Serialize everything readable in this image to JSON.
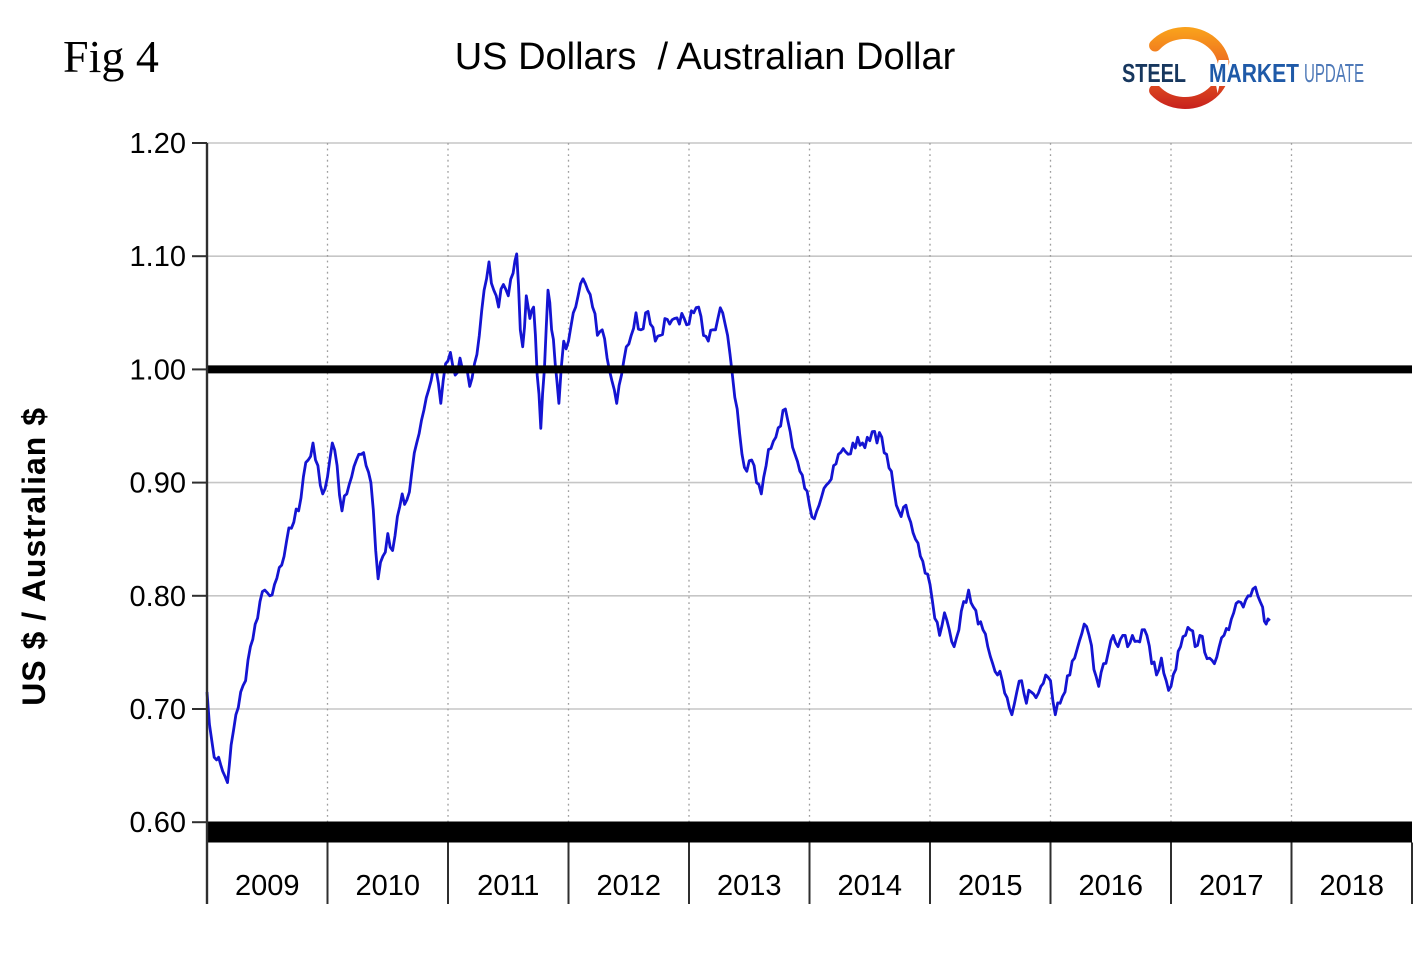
{
  "figure": {
    "fig_label": "Fig 4",
    "title": "US Dollars  / Australian Dollar",
    "y_axis_title": "US $ / Australian $"
  },
  "logo": {
    "word1": "STEEL",
    "word2": "MARKET",
    "word3": "UPDATE",
    "word1_color": "#17375E",
    "word2_color": "#1F5AA8",
    "word3_color": "#4E79B8",
    "crescent_top_color": "#F9A01B",
    "crescent_mid_color": "#ED6A21",
    "crescent_bottom_color": "#C8221D"
  },
  "chart_data": {
    "type": "line",
    "title": "US Dollars / Australian Dollar",
    "xlabel": "",
    "ylabel": "US $ / Australian $",
    "ylim": [
      0.6,
      1.2
    ],
    "xlim": [
      2009,
      2019
    ],
    "y_ticks": [
      1.2,
      1.1,
      1.0,
      0.9,
      0.8,
      0.7,
      0.6
    ],
    "y_tick_labels": [
      "1.20",
      "1.10",
      "1.00",
      "0.90",
      "0.80",
      "0.70",
      "0.60"
    ],
    "x_tick_labels": [
      "2009",
      "2010",
      "2011",
      "2012",
      "2013",
      "2014",
      "2015",
      "2016",
      "2017",
      "2018"
    ],
    "grid": {
      "horizontal": "solid light gray at 0.70-1.20",
      "vertical": "dotted at year boundaries"
    },
    "reference_line_y": 1.0,
    "line_color": "#1414D2",
    "gridline_color": "#C6C6C6",
    "dotted_gridline_color": "#9E9E9E",
    "axis_color": "#2F2F2F",
    "series": [
      {
        "name": "US $ per Australian $",
        "points": [
          [
            2009.0,
            0.715
          ],
          [
            2009.04,
            0.672
          ],
          [
            2009.08,
            0.655
          ],
          [
            2009.13,
            0.645
          ],
          [
            2009.17,
            0.635
          ],
          [
            2009.2,
            0.668
          ],
          [
            2009.24,
            0.695
          ],
          [
            2009.28,
            0.715
          ],
          [
            2009.32,
            0.725
          ],
          [
            2009.36,
            0.755
          ],
          [
            2009.4,
            0.775
          ],
          [
            2009.44,
            0.795
          ],
          [
            2009.48,
            0.805
          ],
          [
            2009.52,
            0.8
          ],
          [
            2009.56,
            0.81
          ],
          [
            2009.6,
            0.825
          ],
          [
            2009.64,
            0.835
          ],
          [
            2009.68,
            0.86
          ],
          [
            2009.72,
            0.865
          ],
          [
            2009.76,
            0.875
          ],
          [
            2009.8,
            0.905
          ],
          [
            2009.84,
            0.92
          ],
          [
            2009.88,
            0.935
          ],
          [
            2009.92,
            0.915
          ],
          [
            2009.96,
            0.89
          ],
          [
            2010.0,
            0.905
          ],
          [
            2010.04,
            0.935
          ],
          [
            2010.08,
            0.915
          ],
          [
            2010.12,
            0.875
          ],
          [
            2010.16,
            0.89
          ],
          [
            2010.2,
            0.905
          ],
          [
            2010.24,
            0.92
          ],
          [
            2010.28,
            0.925
          ],
          [
            2010.32,
            0.915
          ],
          [
            2010.36,
            0.9
          ],
          [
            2010.4,
            0.84
          ],
          [
            2010.42,
            0.815
          ],
          [
            2010.46,
            0.835
          ],
          [
            2010.5,
            0.855
          ],
          [
            2010.54,
            0.84
          ],
          [
            2010.58,
            0.87
          ],
          [
            2010.62,
            0.89
          ],
          [
            2010.66,
            0.885
          ],
          [
            2010.7,
            0.91
          ],
          [
            2010.74,
            0.935
          ],
          [
            2010.78,
            0.955
          ],
          [
            2010.82,
            0.975
          ],
          [
            2010.86,
            0.99
          ],
          [
            2010.9,
            1.0
          ],
          [
            2010.94,
            0.97
          ],
          [
            2010.98,
            1.005
          ],
          [
            2011.02,
            1.015
          ],
          [
            2011.06,
            0.995
          ],
          [
            2011.1,
            1.01
          ],
          [
            2011.14,
            1.0
          ],
          [
            2011.18,
            0.985
          ],
          [
            2011.22,
            1.005
          ],
          [
            2011.26,
            1.03
          ],
          [
            2011.3,
            1.07
          ],
          [
            2011.34,
            1.095
          ],
          [
            2011.38,
            1.07
          ],
          [
            2011.42,
            1.055
          ],
          [
            2011.46,
            1.075
          ],
          [
            2011.5,
            1.065
          ],
          [
            2011.54,
            1.085
          ],
          [
            2011.57,
            1.102
          ],
          [
            2011.6,
            1.035
          ],
          [
            2011.62,
            1.02
          ],
          [
            2011.65,
            1.065
          ],
          [
            2011.68,
            1.045
          ],
          [
            2011.71,
            1.055
          ],
          [
            2011.74,
            0.995
          ],
          [
            2011.77,
            0.948
          ],
          [
            2011.8,
            1.0
          ],
          [
            2011.83,
            1.07
          ],
          [
            2011.86,
            1.035
          ],
          [
            2011.89,
            1.005
          ],
          [
            2011.92,
            0.97
          ],
          [
            2011.96,
            1.025
          ],
          [
            2012.0,
            1.025
          ],
          [
            2012.04,
            1.05
          ],
          [
            2012.08,
            1.065
          ],
          [
            2012.12,
            1.08
          ],
          [
            2012.16,
            1.07
          ],
          [
            2012.2,
            1.055
          ],
          [
            2012.24,
            1.03
          ],
          [
            2012.28,
            1.035
          ],
          [
            2012.32,
            1.01
          ],
          [
            2012.36,
            0.99
          ],
          [
            2012.4,
            0.97
          ],
          [
            2012.44,
            0.995
          ],
          [
            2012.48,
            1.02
          ],
          [
            2012.52,
            1.03
          ],
          [
            2012.56,
            1.05
          ],
          [
            2012.6,
            1.035
          ],
          [
            2012.64,
            1.05
          ],
          [
            2012.68,
            1.04
          ],
          [
            2012.72,
            1.025
          ],
          [
            2012.76,
            1.03
          ],
          [
            2012.8,
            1.045
          ],
          [
            2012.84,
            1.04
          ],
          [
            2012.88,
            1.045
          ],
          [
            2012.92,
            1.04
          ],
          [
            2012.96,
            1.045
          ],
          [
            2013.0,
            1.04
          ],
          [
            2013.04,
            1.05
          ],
          [
            2013.08,
            1.055
          ],
          [
            2013.12,
            1.03
          ],
          [
            2013.16,
            1.025
          ],
          [
            2013.2,
            1.035
          ],
          [
            2013.24,
            1.045
          ],
          [
            2013.28,
            1.05
          ],
          [
            2013.32,
            1.03
          ],
          [
            2013.36,
            0.995
          ],
          [
            2013.4,
            0.965
          ],
          [
            2013.44,
            0.925
          ],
          [
            2013.48,
            0.91
          ],
          [
            2013.52,
            0.92
          ],
          [
            2013.56,
            0.9
          ],
          [
            2013.6,
            0.89
          ],
          [
            2013.64,
            0.915
          ],
          [
            2013.68,
            0.93
          ],
          [
            2013.72,
            0.94
          ],
          [
            2013.76,
            0.95
          ],
          [
            2013.8,
            0.965
          ],
          [
            2013.84,
            0.945
          ],
          [
            2013.88,
            0.925
          ],
          [
            2013.92,
            0.91
          ],
          [
            2013.96,
            0.895
          ],
          [
            2014.0,
            0.88
          ],
          [
            2014.04,
            0.868
          ],
          [
            2014.08,
            0.88
          ],
          [
            2014.12,
            0.895
          ],
          [
            2014.16,
            0.9
          ],
          [
            2014.2,
            0.915
          ],
          [
            2014.24,
            0.925
          ],
          [
            2014.28,
            0.93
          ],
          [
            2014.32,
            0.925
          ],
          [
            2014.36,
            0.935
          ],
          [
            2014.4,
            0.94
          ],
          [
            2014.44,
            0.935
          ],
          [
            2014.48,
            0.94
          ],
          [
            2014.52,
            0.945
          ],
          [
            2014.56,
            0.935
          ],
          [
            2014.6,
            0.94
          ],
          [
            2014.64,
            0.925
          ],
          [
            2014.68,
            0.91
          ],
          [
            2014.72,
            0.88
          ],
          [
            2014.76,
            0.87
          ],
          [
            2014.8,
            0.88
          ],
          [
            2014.84,
            0.865
          ],
          [
            2014.88,
            0.85
          ],
          [
            2014.92,
            0.835
          ],
          [
            2014.96,
            0.82
          ],
          [
            2015.0,
            0.81
          ],
          [
            2015.04,
            0.78
          ],
          [
            2015.08,
            0.765
          ],
          [
            2015.12,
            0.785
          ],
          [
            2015.16,
            0.77
          ],
          [
            2015.2,
            0.755
          ],
          [
            2015.24,
            0.77
          ],
          [
            2015.28,
            0.795
          ],
          [
            2015.32,
            0.805
          ],
          [
            2015.36,
            0.79
          ],
          [
            2015.4,
            0.775
          ],
          [
            2015.44,
            0.77
          ],
          [
            2015.48,
            0.755
          ],
          [
            2015.52,
            0.74
          ],
          [
            2015.56,
            0.73
          ],
          [
            2015.6,
            0.725
          ],
          [
            2015.64,
            0.71
          ],
          [
            2015.68,
            0.695
          ],
          [
            2015.72,
            0.715
          ],
          [
            2015.76,
            0.725
          ],
          [
            2015.8,
            0.705
          ],
          [
            2015.84,
            0.715
          ],
          [
            2015.88,
            0.71
          ],
          [
            2015.92,
            0.72
          ],
          [
            2015.96,
            0.73
          ],
          [
            2016.0,
            0.725
          ],
          [
            2016.04,
            0.695
          ],
          [
            2016.08,
            0.705
          ],
          [
            2016.12,
            0.715
          ],
          [
            2016.16,
            0.73
          ],
          [
            2016.2,
            0.745
          ],
          [
            2016.24,
            0.76
          ],
          [
            2016.28,
            0.775
          ],
          [
            2016.32,
            0.765
          ],
          [
            2016.36,
            0.735
          ],
          [
            2016.4,
            0.72
          ],
          [
            2016.44,
            0.74
          ],
          [
            2016.48,
            0.75
          ],
          [
            2016.52,
            0.765
          ],
          [
            2016.56,
            0.755
          ],
          [
            2016.6,
            0.765
          ],
          [
            2016.64,
            0.755
          ],
          [
            2016.68,
            0.765
          ],
          [
            2016.72,
            0.76
          ],
          [
            2016.76,
            0.77
          ],
          [
            2016.8,
            0.765
          ],
          [
            2016.84,
            0.74
          ],
          [
            2016.88,
            0.73
          ],
          [
            2016.92,
            0.745
          ],
          [
            2016.96,
            0.725
          ],
          [
            2017.0,
            0.72
          ],
          [
            2017.04,
            0.735
          ],
          [
            2017.08,
            0.755
          ],
          [
            2017.12,
            0.765
          ],
          [
            2017.16,
            0.77
          ],
          [
            2017.2,
            0.755
          ],
          [
            2017.24,
            0.765
          ],
          [
            2017.28,
            0.75
          ],
          [
            2017.32,
            0.745
          ],
          [
            2017.36,
            0.74
          ],
          [
            2017.4,
            0.755
          ],
          [
            2017.44,
            0.765
          ],
          [
            2017.48,
            0.77
          ],
          [
            2017.52,
            0.785
          ],
          [
            2017.56,
            0.795
          ],
          [
            2017.6,
            0.79
          ],
          [
            2017.64,
            0.8
          ],
          [
            2017.68,
            0.806
          ],
          [
            2017.72,
            0.8
          ],
          [
            2017.76,
            0.79
          ],
          [
            2017.79,
            0.775
          ],
          [
            2017.82,
            0.778
          ]
        ]
      }
    ]
  }
}
